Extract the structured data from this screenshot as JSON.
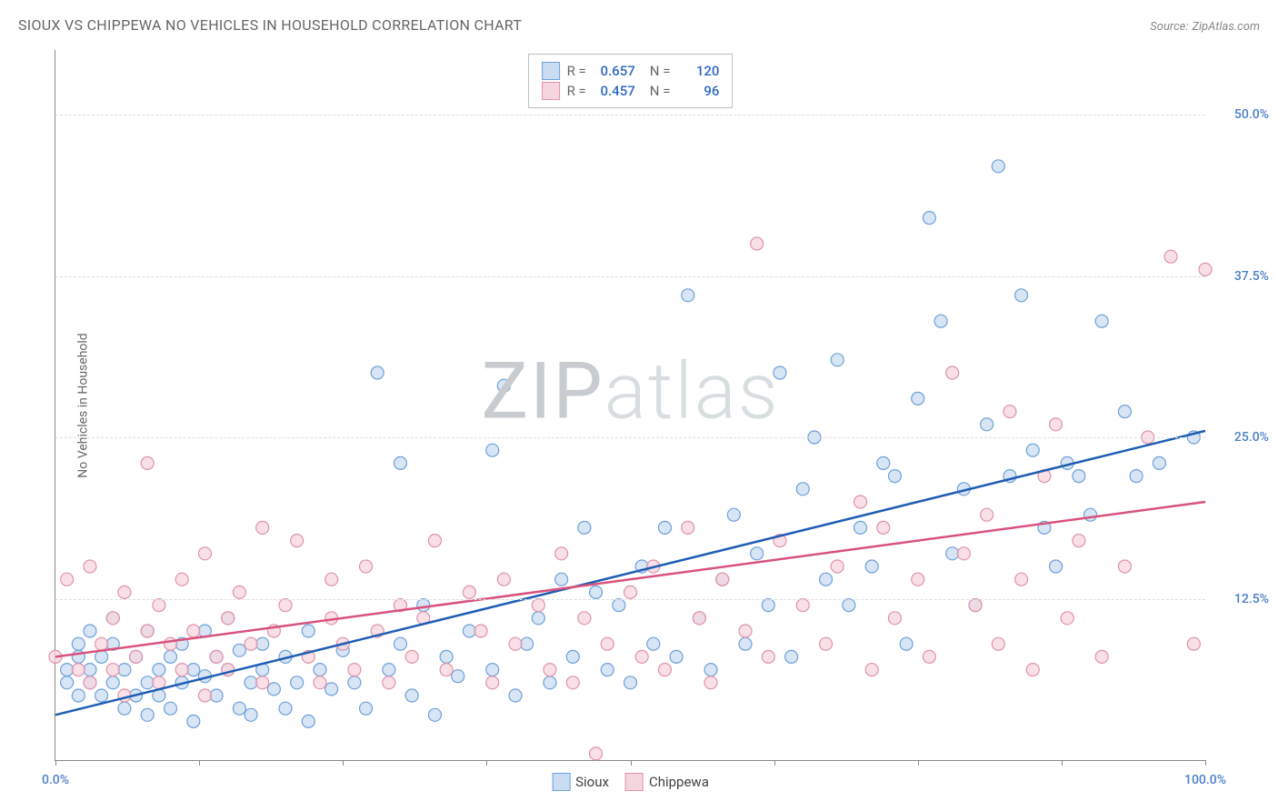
{
  "title": "SIOUX VS CHIPPEWA NO VEHICLES IN HOUSEHOLD CORRELATION CHART",
  "source_label": "Source:",
  "source_name": "ZipAtlas.com",
  "y_axis_label": "No Vehicles in Household",
  "watermark_left": "ZIP",
  "watermark_right": "atlas",
  "chart": {
    "type": "scatter",
    "xlim": [
      0,
      100
    ],
    "ylim": [
      0,
      55
    ],
    "ytick_values": [
      12.5,
      25.0,
      37.5,
      50.0
    ],
    "ytick_labels": [
      "12.5%",
      "25.0%",
      "37.5%",
      "50.0%"
    ],
    "xtick_values": [
      0,
      12.5,
      25,
      37.5,
      50,
      62.5,
      75,
      87.5,
      100
    ],
    "xtick_label_start": "0.0%",
    "xtick_label_end": "100.0%",
    "background_color": "#ffffff",
    "grid_color": "#dddddd",
    "axis_color": "#888888",
    "axis_label_color": "#4a7fc9",
    "marker_radius": 7,
    "marker_stroke_width": 1.2,
    "line_width": 2.5
  },
  "series": [
    {
      "name": "Sioux",
      "fill": "#c9dcf2",
      "stroke": "#6fa0db",
      "line_color": "#1f5db3",
      "R": "0.657",
      "N": "120",
      "line": {
        "x1": 0,
        "y1": 3.5,
        "x2": 100,
        "y2": 25.5
      },
      "points": [
        [
          1,
          7
        ],
        [
          1,
          6
        ],
        [
          2,
          8
        ],
        [
          2,
          5
        ],
        [
          2,
          9
        ],
        [
          3,
          6
        ],
        [
          3,
          7
        ],
        [
          3,
          10
        ],
        [
          4,
          5
        ],
        [
          4,
          8
        ],
        [
          5,
          6
        ],
        [
          5,
          9
        ],
        [
          5,
          11
        ],
        [
          6,
          4
        ],
        [
          6,
          7
        ],
        [
          7,
          8
        ],
        [
          7,
          5
        ],
        [
          8,
          6
        ],
        [
          8,
          10
        ],
        [
          8,
          3.5
        ],
        [
          9,
          7
        ],
        [
          9,
          5
        ],
        [
          10,
          8
        ],
        [
          10,
          4
        ],
        [
          11,
          9
        ],
        [
          11,
          6
        ],
        [
          12,
          7
        ],
        [
          12,
          3
        ],
        [
          13,
          10
        ],
        [
          13,
          6.5
        ],
        [
          14,
          8
        ],
        [
          14,
          5
        ],
        [
          15,
          7
        ],
        [
          15,
          11
        ],
        [
          16,
          4
        ],
        [
          16,
          8.5
        ],
        [
          17,
          6
        ],
        [
          17,
          3.5
        ],
        [
          18,
          9
        ],
        [
          18,
          7
        ],
        [
          19,
          5.5
        ],
        [
          20,
          8
        ],
        [
          20,
          4
        ],
        [
          21,
          6
        ],
        [
          22,
          3
        ],
        [
          22,
          10
        ],
        [
          23,
          7
        ],
        [
          24,
          5.5
        ],
        [
          25,
          8.5
        ],
        [
          26,
          6
        ],
        [
          27,
          4
        ],
        [
          28,
          30
        ],
        [
          29,
          7
        ],
        [
          30,
          23
        ],
        [
          30,
          9
        ],
        [
          31,
          5
        ],
        [
          32,
          12
        ],
        [
          33,
          3.5
        ],
        [
          34,
          8
        ],
        [
          35,
          6.5
        ],
        [
          36,
          10
        ],
        [
          38,
          7
        ],
        [
          38,
          24
        ],
        [
          39,
          29
        ],
        [
          40,
          5
        ],
        [
          41,
          9
        ],
        [
          42,
          11
        ],
        [
          43,
          6
        ],
        [
          44,
          14
        ],
        [
          45,
          8
        ],
        [
          46,
          18
        ],
        [
          47,
          13
        ],
        [
          48,
          7
        ],
        [
          49,
          12
        ],
        [
          50,
          6
        ],
        [
          51,
          15
        ],
        [
          52,
          9
        ],
        [
          53,
          18
        ],
        [
          54,
          8
        ],
        [
          55,
          36
        ],
        [
          56,
          11
        ],
        [
          57,
          7
        ],
        [
          58,
          14
        ],
        [
          59,
          19
        ],
        [
          60,
          9
        ],
        [
          61,
          16
        ],
        [
          62,
          12
        ],
        [
          63,
          30
        ],
        [
          64,
          8
        ],
        [
          65,
          21
        ],
        [
          66,
          25
        ],
        [
          67,
          14
        ],
        [
          68,
          31
        ],
        [
          69,
          12
        ],
        [
          70,
          18
        ],
        [
          71,
          15
        ],
        [
          72,
          23
        ],
        [
          73,
          22
        ],
        [
          74,
          9
        ],
        [
          75,
          28
        ],
        [
          76,
          42
        ],
        [
          77,
          34
        ],
        [
          78,
          16
        ],
        [
          79,
          21
        ],
        [
          80,
          12
        ],
        [
          81,
          26
        ],
        [
          82,
          46
        ],
        [
          83,
          22
        ],
        [
          84,
          36
        ],
        [
          85,
          24
        ],
        [
          86,
          18
        ],
        [
          87,
          15
        ],
        [
          88,
          23
        ],
        [
          89,
          22
        ],
        [
          90,
          19
        ],
        [
          91,
          34
        ],
        [
          93,
          27
        ],
        [
          94,
          22
        ],
        [
          96,
          23
        ],
        [
          99,
          25
        ]
      ]
    },
    {
      "name": "Chippewa",
      "fill": "#f6d6de",
      "stroke": "#e193a9",
      "line_color": "#d9527d",
      "R": "0.457",
      "N": "96",
      "line": {
        "x1": 0,
        "y1": 8.0,
        "x2": 100,
        "y2": 20.0
      },
      "points": [
        [
          0,
          8
        ],
        [
          1,
          14
        ],
        [
          2,
          7
        ],
        [
          3,
          15
        ],
        [
          3,
          6
        ],
        [
          4,
          9
        ],
        [
          5,
          11
        ],
        [
          5,
          7
        ],
        [
          6,
          5
        ],
        [
          6,
          13
        ],
        [
          7,
          8
        ],
        [
          8,
          10
        ],
        [
          8,
          23
        ],
        [
          9,
          6
        ],
        [
          9,
          12
        ],
        [
          10,
          9
        ],
        [
          11,
          7
        ],
        [
          11,
          14
        ],
        [
          12,
          10
        ],
        [
          13,
          5
        ],
        [
          13,
          16
        ],
        [
          14,
          8
        ],
        [
          15,
          11
        ],
        [
          15,
          7
        ],
        [
          16,
          13
        ],
        [
          17,
          9
        ],
        [
          18,
          6
        ],
        [
          18,
          18
        ],
        [
          19,
          10
        ],
        [
          20,
          12
        ],
        [
          21,
          17
        ],
        [
          22,
          8
        ],
        [
          23,
          6
        ],
        [
          24,
          11
        ],
        [
          24,
          14
        ],
        [
          25,
          9
        ],
        [
          26,
          7
        ],
        [
          27,
          15
        ],
        [
          28,
          10
        ],
        [
          29,
          6
        ],
        [
          30,
          12
        ],
        [
          31,
          8
        ],
        [
          32,
          11
        ],
        [
          33,
          17
        ],
        [
          34,
          7
        ],
        [
          36,
          13
        ],
        [
          37,
          10
        ],
        [
          38,
          6
        ],
        [
          39,
          14
        ],
        [
          40,
          9
        ],
        [
          42,
          12
        ],
        [
          43,
          7
        ],
        [
          44,
          16
        ],
        [
          45,
          6
        ],
        [
          46,
          11
        ],
        [
          47,
          0.5
        ],
        [
          48,
          9
        ],
        [
          50,
          13
        ],
        [
          51,
          8
        ],
        [
          52,
          15
        ],
        [
          53,
          7
        ],
        [
          55,
          18
        ],
        [
          56,
          11
        ],
        [
          57,
          6
        ],
        [
          58,
          14
        ],
        [
          60,
          10
        ],
        [
          61,
          40
        ],
        [
          62,
          8
        ],
        [
          63,
          17
        ],
        [
          65,
          12
        ],
        [
          67,
          9
        ],
        [
          68,
          15
        ],
        [
          70,
          20
        ],
        [
          71,
          7
        ],
        [
          72,
          18
        ],
        [
          73,
          11
        ],
        [
          75,
          14
        ],
        [
          76,
          8
        ],
        [
          78,
          30
        ],
        [
          79,
          16
        ],
        [
          80,
          12
        ],
        [
          81,
          19
        ],
        [
          82,
          9
        ],
        [
          83,
          27
        ],
        [
          84,
          14
        ],
        [
          85,
          7
        ],
        [
          86,
          22
        ],
        [
          87,
          26
        ],
        [
          88,
          11
        ],
        [
          89,
          17
        ],
        [
          91,
          8
        ],
        [
          93,
          15
        ],
        [
          95,
          25
        ],
        [
          97,
          39
        ],
        [
          99,
          9
        ],
        [
          100,
          38
        ]
      ]
    }
  ],
  "legend_top": {
    "r_label": "R =",
    "n_label": "N ="
  },
  "legend_bottom": {
    "items": [
      "Sioux",
      "Chippewa"
    ]
  }
}
